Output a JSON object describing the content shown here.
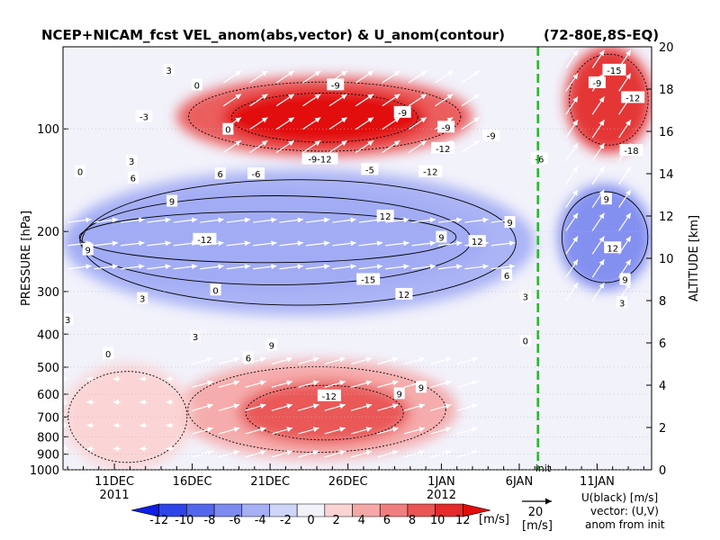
{
  "chart_data": {
    "type": "heatmap",
    "title": "NCEP+NICAM_fcst VEL_anom(abs,vector) & U_anom(contour)",
    "region": "(72-80E,8S-EQ)",
    "ylabel_left": "PRESSURE [hPa]",
    "ylabel_right": "ALTITUDE [km]",
    "x_ticks": [
      {
        "label": "11DEC",
        "sub": "2011",
        "day": 0
      },
      {
        "label": "16DEC",
        "sub": "",
        "day": 5
      },
      {
        "label": "21DEC",
        "sub": "",
        "day": 10
      },
      {
        "label": "26DEC",
        "sub": "",
        "day": 15
      },
      {
        "label": "1JAN",
        "sub": "2012",
        "day": 21
      },
      {
        "label": "6JAN",
        "sub": "",
        "day": 26
      },
      {
        "label": "11JAN",
        "sub": "",
        "day": 31
      }
    ],
    "x_range_days": [
      -3.3,
      34.5
    ],
    "pressure_ticks": [
      100,
      200,
      300,
      400,
      500,
      600,
      700,
      800,
      900,
      1000
    ],
    "pressure_range": [
      1000,
      50
    ],
    "altitude_ticks": [
      0,
      2,
      4,
      6,
      8,
      10,
      12,
      14,
      16,
      18,
      20
    ],
    "altitude_range_km": [
      0,
      20
    ],
    "init_day": 27.2,
    "init_label": "init",
    "colorbar": {
      "labels": [
        "-12",
        "-10",
        "-8",
        "-6",
        "-4",
        "-2",
        "0",
        "2",
        "4",
        "6",
        "8",
        "10",
        "12"
      ],
      "unit": "[m/s]",
      "levels": [
        -12,
        -10,
        -8,
        -6,
        -4,
        -2,
        0,
        2,
        4,
        6,
        8,
        10,
        12
      ],
      "colors": [
        "#0d1ee6",
        "#2e44e8",
        "#5466ea",
        "#7d8aef",
        "#a6b0f4",
        "#cfd5f9",
        "#f2f2fb",
        "#fbd3d3",
        "#f6a8a8",
        "#f07e7e",
        "#ea5454",
        "#e42a2a",
        "#e20d0d"
      ]
    },
    "vector_ref": {
      "value": "20",
      "unit": "[m/s]"
    },
    "legend_lines": [
      "U(black) [m/s]",
      "vector: (U,V)",
      "anom from init"
    ],
    "anomaly_regions": [
      {
        "day_start": -3.3,
        "day_end": 23,
        "alt_start": 9.6,
        "alt_end": 12.4,
        "value": -12
      },
      {
        "day_start": -3.3,
        "day_end": 24,
        "alt_start": 8.4,
        "alt_end": 13.3,
        "value": -7
      },
      {
        "day_start": -3.3,
        "day_end": 27,
        "alt_start": 7.3,
        "alt_end": 14.2,
        "value": -3
      },
      {
        "day_start": 4,
        "day_end": 23,
        "alt_start": 14.8,
        "alt_end": 18.6,
        "value": 8
      },
      {
        "day_start": 7,
        "day_end": 20,
        "alt_start": 15.3,
        "alt_end": 18.0,
        "value": 12
      },
      {
        "day_start": 4,
        "day_end": 22,
        "alt_start": 0.5,
        "alt_end": 5.2,
        "value": 5
      },
      {
        "day_start": 8,
        "day_end": 19,
        "alt_start": 1.2,
        "alt_end": 4.2,
        "value": 9
      },
      {
        "day_start": 29,
        "day_end": 34.5,
        "alt_start": 15.0,
        "alt_end": 20,
        "value": 10
      },
      {
        "day_start": 28.5,
        "day_end": 34.5,
        "alt_start": 8.5,
        "alt_end": 13.5,
        "value": -5
      },
      {
        "day_start": -3.3,
        "day_end": 5,
        "alt_start": 0,
        "alt_end": 5,
        "value": 3
      }
    ],
    "contour_labels": [
      {
        "text": "3",
        "day": 3.5,
        "alt": 18.9
      },
      {
        "text": "0",
        "day": 5.3,
        "alt": 18.2
      },
      {
        "text": "-3",
        "day": 1.9,
        "alt": 16.7
      },
      {
        "text": "0",
        "day": 7.3,
        "alt": 16.1
      },
      {
        "text": "3",
        "day": 1.1,
        "alt": 14.6
      },
      {
        "text": "0",
        "day": -2.2,
        "alt": 14.1
      },
      {
        "text": "6",
        "day": 1.2,
        "alt": 13.8
      },
      {
        "text": "6",
        "day": 6.8,
        "alt": 14.0
      },
      {
        "text": "-9",
        "day": 14.2,
        "alt": 18.2
      },
      {
        "text": "-9",
        "day": 18.5,
        "alt": 16.9
      },
      {
        "text": "-12",
        "day": 21.1,
        "alt": 15.2
      },
      {
        "text": "-9",
        "day": 21.3,
        "alt": 16.2
      },
      {
        "text": "-9-12",
        "day": 13.2,
        "alt": 14.7
      },
      {
        "text": "-6",
        "day": 9.1,
        "alt": 14.0
      },
      {
        "text": "-5",
        "day": 16.4,
        "alt": 14.2
      },
      {
        "text": "-12",
        "day": 20.3,
        "alt": 14.1
      },
      {
        "text": "-9",
        "day": 24.2,
        "alt": 15.8
      },
      {
        "text": "-6",
        "day": 27.3,
        "alt": 14.7
      },
      {
        "text": "9",
        "day": 3.7,
        "alt": 12.7
      },
      {
        "text": "-12",
        "day": 5.8,
        "alt": 10.9
      },
      {
        "text": "12",
        "day": 17.4,
        "alt": 12.0
      },
      {
        "text": "9",
        "day": 21.0,
        "alt": 11.0
      },
      {
        "text": "12",
        "day": 23.3,
        "alt": 10.8
      },
      {
        "text": "9",
        "day": 25.4,
        "alt": 11.7
      },
      {
        "text": "-15",
        "day": 16.3,
        "alt": 9.0
      },
      {
        "text": "12",
        "day": 18.6,
        "alt": 8.3
      },
      {
        "text": "9",
        "day": -1.7,
        "alt": 10.4
      },
      {
        "text": "6",
        "day": 25.2,
        "alt": 9.2
      },
      {
        "text": "3",
        "day": 26.4,
        "alt": 8.2
      },
      {
        "text": "3",
        "day": 1.8,
        "alt": 8.1
      },
      {
        "text": "0",
        "day": 6.5,
        "alt": 8.5
      },
      {
        "text": "3",
        "day": -3.0,
        "alt": 7.1
      },
      {
        "text": "3",
        "day": 5.2,
        "alt": 6.3
      },
      {
        "text": "0",
        "day": -0.4,
        "alt": 5.5
      },
      {
        "text": "9",
        "day": 10.1,
        "alt": 5.9
      },
      {
        "text": "6",
        "day": 8.6,
        "alt": 5.3
      },
      {
        "text": "-12",
        "day": 13.8,
        "alt": 3.5
      },
      {
        "text": "9",
        "day": 18.3,
        "alt": 3.6
      },
      {
        "text": "9",
        "day": 19.7,
        "alt": 3.9
      },
      {
        "text": "-15",
        "day": 32.1,
        "alt": 18.9
      },
      {
        "text": "-9",
        "day": 31.0,
        "alt": 18.3
      },
      {
        "text": "-12",
        "day": 33.3,
        "alt": 17.6
      },
      {
        "text": "-18",
        "day": 33.2,
        "alt": 15.1
      },
      {
        "text": "9",
        "day": 31.6,
        "alt": 12.8
      },
      {
        "text": "12",
        "day": 32.0,
        "alt": 10.5
      },
      {
        "text": "3",
        "day": 32.6,
        "alt": 7.9
      },
      {
        "text": "9",
        "day": 32.8,
        "alt": 9.0
      },
      {
        "text": "0",
        "day": 26.4,
        "alt": 6.1
      }
    ],
    "wind_vectors": [
      {
        "day_start": -3,
        "day_end": 25,
        "alt_start": 9.5,
        "alt_end": 12.5,
        "u": 16,
        "v": 2
      },
      {
        "day_start": 7,
        "day_end": 23,
        "alt_start": 15,
        "alt_end": 18.5,
        "u": 12,
        "v": 8
      },
      {
        "day_start": 5,
        "day_end": 22,
        "alt_start": 0.6,
        "alt_end": 5,
        "u": 14,
        "v": 4
      },
      {
        "day_start": 29,
        "day_end": 34,
        "alt_start": 8,
        "alt_end": 19,
        "u": 8,
        "v": 12
      },
      {
        "day_start": -3,
        "day_end": 5,
        "alt_start": 1,
        "alt_end": 5,
        "u": -5,
        "v": 0
      }
    ]
  }
}
